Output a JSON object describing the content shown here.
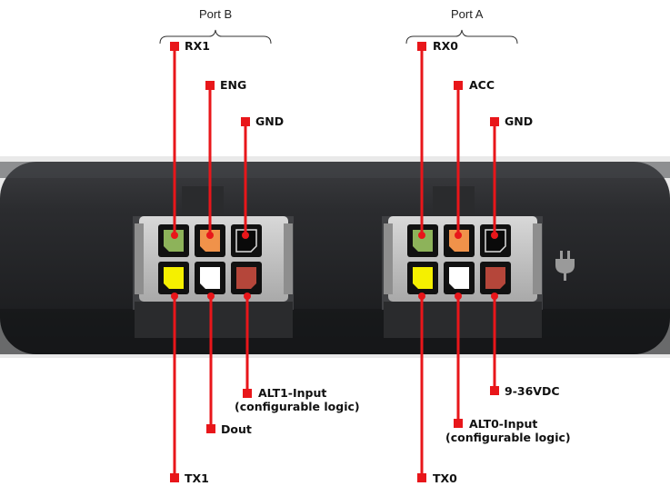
{
  "ports": [
    {
      "title": "Port B"
    },
    {
      "title": "Port A"
    }
  ],
  "pins": {
    "port_b": {
      "rx": "RX1",
      "eng": "ENG",
      "gnd": "GND",
      "tx": "TX1",
      "dout": "Dout",
      "alt_line1": "ALT1-Input",
      "alt_line2": "(configurable logic)"
    },
    "port_a": {
      "rx": "RX0",
      "acc": "ACC",
      "gnd": "GND",
      "tx": "TX0",
      "power": "9-36VDC",
      "alt_line1": "ALT0-Input",
      "alt_line2": "(configurable logic)"
    }
  },
  "pin_colors": {
    "green": "#8db35a",
    "orange": "#f0924a",
    "black": "#0a0a0a",
    "yellow": "#f5f000",
    "white": "#ffffff",
    "red": "#b5463a"
  },
  "line_color": "#e8161a",
  "icons": [
    "power-plug-icon"
  ]
}
